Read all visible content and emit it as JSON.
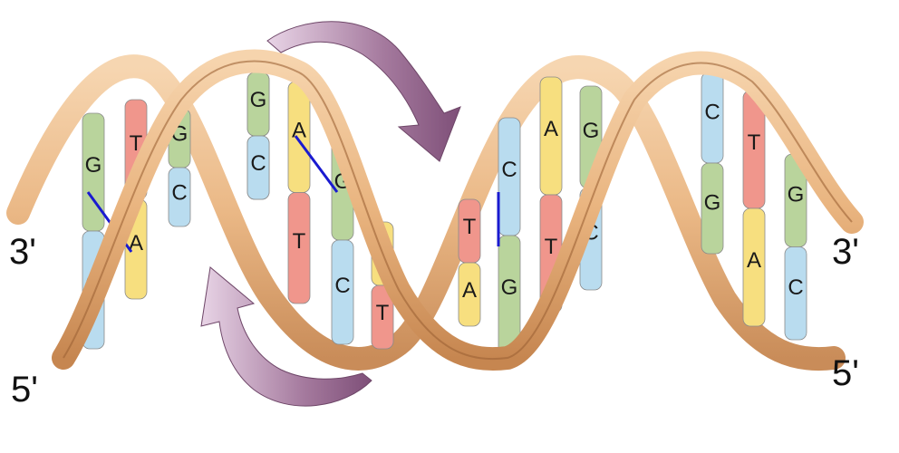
{
  "labels": {
    "left_top": "3'",
    "left_bottom": "5'",
    "right_top": "3'",
    "right_bottom": "5'"
  },
  "colors": {
    "A": "#f7df7f",
    "T": "#f0968c",
    "G": "#b9d49c",
    "C": "#b9dcef",
    "backbone_light": "#f3c99a",
    "backbone_dark": "#c8864f",
    "arrow": "#9b6b92",
    "bond_line": "#1a1ad0"
  },
  "base_pairs": [
    {
      "top": "T",
      "bottom": "A"
    },
    {
      "top": "G",
      "bottom": "C"
    },
    {
      "top": "G",
      "bottom": "C"
    },
    {
      "top": "C",
      "bottom": "G"
    },
    {
      "top": "G",
      "bottom": "C"
    },
    {
      "top": "A",
      "bottom": "T"
    },
    {
      "top": "G",
      "bottom": "C"
    },
    {
      "top": "A",
      "bottom": "T"
    },
    {
      "top": "T",
      "bottom": "A"
    },
    {
      "top": "C",
      "bottom": "G"
    },
    {
      "top": "A",
      "bottom": "T"
    },
    {
      "top": "G",
      "bottom": "C"
    },
    {
      "top": "C",
      "bottom": "G"
    },
    {
      "top": "T",
      "bottom": "A"
    },
    {
      "top": "G",
      "bottom": "C"
    }
  ]
}
